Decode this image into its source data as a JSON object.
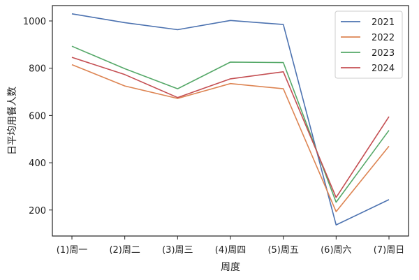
{
  "chart_data": {
    "type": "line",
    "xlabel": "周度",
    "ylabel": "日平均用餐人数",
    "categories": [
      "(1)周一",
      "(2)周二",
      "(3)周三",
      "(4)周四",
      "(5)周五",
      "(6)周六",
      "(7)周日"
    ],
    "yticks": [
      200,
      400,
      600,
      800,
      1000
    ],
    "ylim": [
      90,
      1065
    ],
    "grid": false,
    "legend": "top-right",
    "series": [
      {
        "name": "2021",
        "color": "#4c72b0",
        "values": [
          1030,
          993,
          963,
          1002,
          985,
          137,
          244
        ]
      },
      {
        "name": "2022",
        "color": "#dd8452",
        "values": [
          815,
          725,
          672,
          735,
          713,
          193,
          470
        ]
      },
      {
        "name": "2023",
        "color": "#55a868",
        "values": [
          893,
          798,
          713,
          826,
          824,
          233,
          537
        ]
      },
      {
        "name": "2024",
        "color": "#c44e52",
        "values": [
          846,
          773,
          676,
          755,
          785,
          253,
          595
        ]
      }
    ]
  }
}
